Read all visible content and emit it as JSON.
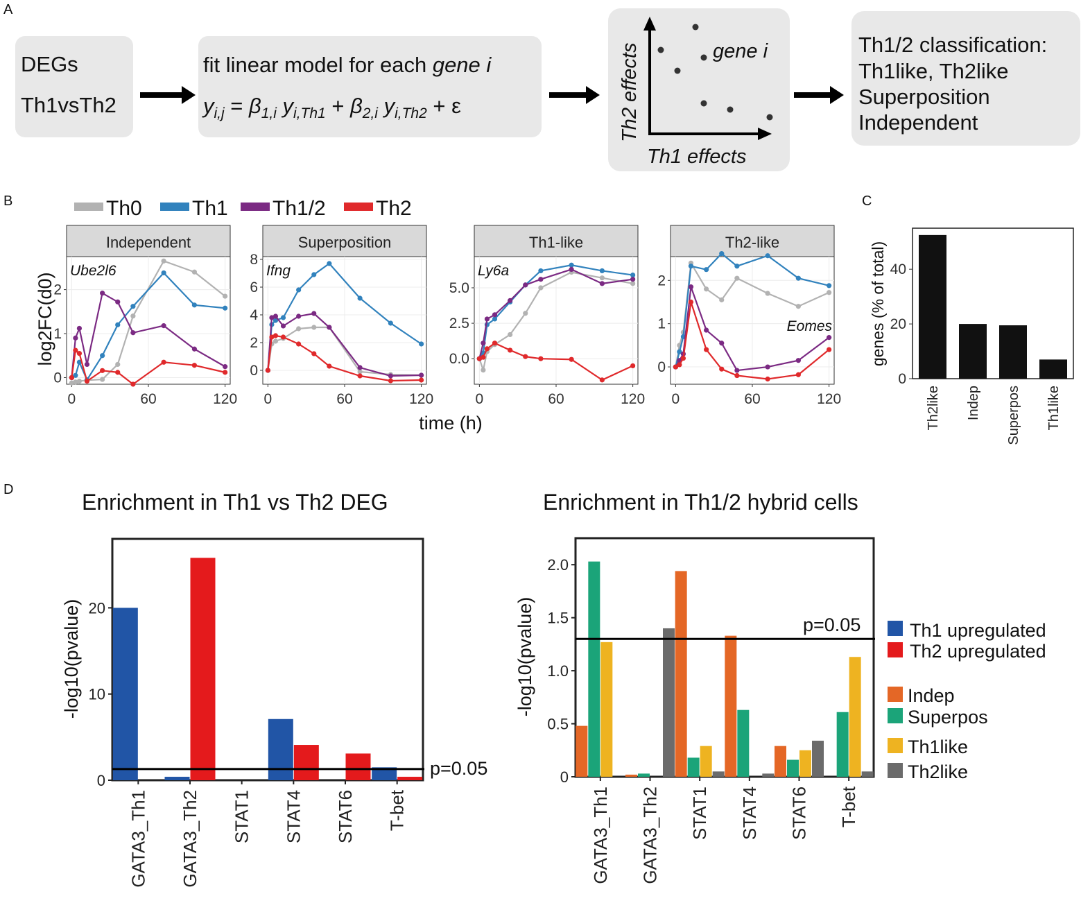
{
  "panel_labels": {
    "a": "A",
    "b": "B",
    "c": "C",
    "d": "D"
  },
  "panelA": {
    "box1": {
      "line1": "DEGs",
      "line2": "Th1vsTh2"
    },
    "box2": {
      "line1_prefix": "fit linear model for each ",
      "line1_italic": "gene i",
      "eq_y": "y",
      "eq_sub_y": "i,j",
      "eq_eq": " = ",
      "eq_b1": "β",
      "eq_sub_b1": "1,i",
      "eq_y1": " y",
      "eq_sub_y1": "i,Th1",
      "eq_plus": " + ",
      "eq_b2": "β",
      "eq_sub_b2": "2,i",
      "eq_y2": " y",
      "eq_sub_y2": "i,Th2",
      "eq_tail": "  + ε"
    },
    "box3": {
      "ylabel": "Th2 effects",
      "xlabel": "Th1 effects",
      "point_label": "gene i"
    },
    "box4": {
      "line1": "Th1/2 classification:",
      "line2": "Th1like, Th2like",
      "line3": "Superposition",
      "line4": "Independent"
    }
  },
  "colors": {
    "Th0": "#b2b2b2",
    "Th1": "#3182bd",
    "Th1/2": "#7b2a83",
    "Th2": "#e0292b",
    "Indep": "#e46726",
    "Superpos": "#1ba479",
    "Th1like": "#eeb321",
    "Th2like": "#6b6b6b",
    "Th1_upregulated": "#2155a6",
    "Th2_upregulated": "#e41a1c"
  },
  "chart_data": [
    {
      "type": "line",
      "title": "Independent",
      "gene": "Ube2l6",
      "x": [
        0,
        3,
        6,
        12,
        24,
        36,
        48,
        72,
        96,
        120
      ],
      "xlim": [
        -4,
        124
      ],
      "ylim": [
        -0.15,
        2.75
      ],
      "xticks": [
        0,
        60,
        120
      ],
      "yticks": [
        0,
        1,
        2
      ],
      "ylabel": "log2FC(d0)",
      "series": [
        {
          "name": "Th0",
          "values": [
            -0.12,
            -0.1,
            -0.08,
            -0.06,
            -0.04,
            0.3,
            1.4,
            2.65,
            2.4,
            1.85
          ]
        },
        {
          "name": "Th1",
          "values": [
            0.0,
            0.05,
            0.35,
            -0.05,
            0.5,
            1.2,
            1.62,
            2.38,
            1.65,
            1.58
          ]
        },
        {
          "name": "Th1/2",
          "values": [
            0.0,
            0.9,
            1.12,
            0.3,
            1.92,
            1.72,
            1.02,
            1.18,
            0.65,
            0.25
          ]
        },
        {
          "name": "Th2",
          "values": [
            0.0,
            0.62,
            0.55,
            -0.08,
            0.16,
            0.12,
            -0.15,
            0.35,
            0.28,
            0.12
          ]
        }
      ]
    },
    {
      "type": "line",
      "title": "Superposition",
      "gene": "Ifng",
      "x": [
        0,
        3,
        6,
        12,
        24,
        36,
        48,
        72,
        96,
        120
      ],
      "xlim": [
        -4,
        124
      ],
      "ylim": [
        -1.0,
        8.2
      ],
      "xticks": [
        0,
        60,
        120
      ],
      "yticks": [
        0,
        2,
        4,
        6,
        8
      ],
      "series": [
        {
          "name": "Th0",
          "values": [
            0.0,
            1.9,
            2.1,
            2.3,
            3.0,
            3.1,
            3.1,
            -0.1,
            -0.3,
            -0.35
          ]
        },
        {
          "name": "Th1",
          "values": [
            0.0,
            3.3,
            3.6,
            3.8,
            5.8,
            6.9,
            7.7,
            5.2,
            3.4,
            1.9
          ]
        },
        {
          "name": "Th1/2",
          "values": [
            0.0,
            3.8,
            3.9,
            3.2,
            3.9,
            4.1,
            3.1,
            0.2,
            -0.4,
            -0.35
          ]
        },
        {
          "name": "Th2",
          "values": [
            0.0,
            2.4,
            2.5,
            2.4,
            1.9,
            1.2,
            0.3,
            -0.4,
            -0.75,
            -0.7
          ]
        }
      ]
    },
    {
      "type": "line",
      "title": "Th1-like",
      "gene": "Ly6a",
      "x": [
        0,
        3,
        6,
        12,
        24,
        36,
        48,
        72,
        96,
        120
      ],
      "xlim": [
        -4,
        124
      ],
      "ylim": [
        -1.8,
        7.2
      ],
      "xticks": [
        0,
        60,
        120
      ],
      "yticks": [
        0.0,
        2.5,
        5.0
      ],
      "ytick_labels": [
        "0.0",
        "2.5",
        "5.0"
      ],
      "series": [
        {
          "name": "Th0",
          "values": [
            0.0,
            -0.8,
            0.5,
            1.0,
            1.7,
            3.2,
            5.0,
            6.1,
            5.7,
            5.3
          ]
        },
        {
          "name": "Th1",
          "values": [
            0.0,
            0.4,
            2.4,
            2.8,
            4.0,
            5.2,
            6.2,
            6.6,
            6.2,
            5.9
          ]
        },
        {
          "name": "Th1/2",
          "values": [
            0.0,
            1.1,
            2.8,
            3.1,
            4.1,
            5.2,
            5.6,
            6.3,
            5.3,
            5.6
          ]
        },
        {
          "name": "Th2",
          "values": [
            0.0,
            0.1,
            0.7,
            1.1,
            0.6,
            0.15,
            0.0,
            -0.05,
            -1.5,
            -0.5
          ]
        }
      ]
    },
    {
      "type": "line",
      "title": "Th2-like",
      "gene": "Eomes",
      "x": [
        0,
        3,
        6,
        12,
        24,
        36,
        48,
        72,
        96,
        120
      ],
      "xlim": [
        -4,
        124
      ],
      "ylim": [
        -0.4,
        2.55
      ],
      "xticks": [
        0,
        60,
        120
      ],
      "yticks": [
        0,
        1,
        2
      ],
      "series": [
        {
          "name": "Th0",
          "values": [
            0.0,
            0.5,
            0.8,
            2.4,
            1.8,
            1.55,
            2.05,
            1.7,
            1.4,
            1.72
          ]
        },
        {
          "name": "Th1",
          "values": [
            0.0,
            0.35,
            0.7,
            2.33,
            2.25,
            2.62,
            2.33,
            2.57,
            2.05,
            1.88
          ]
        },
        {
          "name": "Th1/2",
          "values": [
            0.0,
            0.15,
            0.3,
            1.85,
            0.85,
            0.55,
            -0.08,
            0.0,
            0.15,
            0.68
          ]
        },
        {
          "name": "Th2",
          "values": [
            0.0,
            0.05,
            0.2,
            1.5,
            0.4,
            -0.05,
            -0.2,
            -0.28,
            -0.18,
            0.4
          ]
        }
      ]
    },
    {
      "type": "bar",
      "categories": [
        "Th2like",
        "Indep",
        "Superpos",
        "Th1like"
      ],
      "values": [
        52.5,
        20,
        19.5,
        7
      ],
      "ylabel": "genes (% of total)",
      "ylim": [
        0,
        55
      ],
      "yticks": [
        0,
        20,
        40
      ]
    },
    {
      "type": "bar",
      "title": "Enrichment in Th1 vs Th2 DEG",
      "categories": [
        "GATA3_Th1",
        "GATA3_Th2",
        "STAT1",
        "STAT4",
        "STAT6",
        "T-bet"
      ],
      "ylabel": "-log10(pvalue)",
      "ylim": [
        0,
        28
      ],
      "yticks": [
        0,
        10,
        20
      ],
      "threshold": 1.3,
      "threshold_label": "p=0.05",
      "series": [
        {
          "name": "Th1 upregulated",
          "values": [
            20.0,
            0.4,
            0.0,
            7.1,
            0.0,
            1.5
          ]
        },
        {
          "name": "Th2 upregulated",
          "values": [
            0.0,
            25.8,
            0.0,
            4.1,
            3.1,
            0.4
          ]
        }
      ]
    },
    {
      "type": "bar",
      "title": "Enrichment in Th1/2 hybrid cells",
      "categories": [
        "GATA3_Th1",
        "GATA3_Th2",
        "STAT1",
        "STAT4",
        "STAT6",
        "T-bet"
      ],
      "ylabel": "-log10(pvalue)",
      "ylim": [
        0,
        2.25
      ],
      "yticks": [
        0,
        0.5,
        1.0,
        1.5,
        2.0
      ],
      "ytick_labels": [
        "0",
        "0.5",
        "1.0",
        "1.5",
        "2.0"
      ],
      "threshold": 1.3,
      "threshold_label": "p=0.05",
      "series": [
        {
          "name": "Indep",
          "values": [
            0.48,
            0.02,
            1.94,
            1.33,
            0.29,
            0.0
          ]
        },
        {
          "name": "Superpos",
          "values": [
            2.03,
            0.03,
            0.18,
            0.63,
            0.16,
            0.61
          ]
        },
        {
          "name": "Th1like",
          "values": [
            1.27,
            0.0,
            0.29,
            0.0,
            0.25,
            1.13
          ]
        },
        {
          "name": "Th2like",
          "values": [
            0.0,
            1.4,
            0.05,
            0.03,
            0.34,
            0.05
          ]
        }
      ]
    }
  ],
  "panelB_xlabel": "time (h)",
  "legends": {
    "top": [
      "Th0",
      "Th1",
      "Th1/2",
      "Th2"
    ],
    "right_group1": [
      "Th1 upregulated",
      "Th2 upregulated"
    ],
    "right_group2": [
      "Indep",
      "Superpos",
      "Th1like",
      "Th2like"
    ]
  }
}
